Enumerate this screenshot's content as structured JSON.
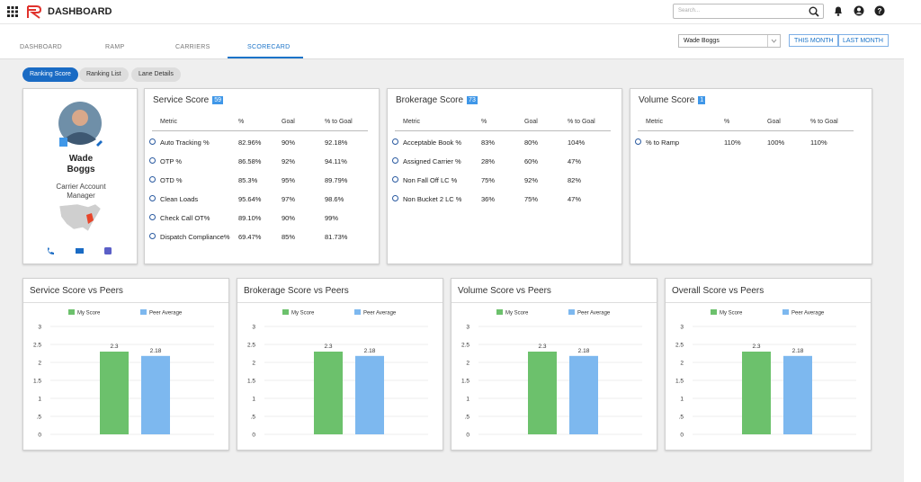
{
  "header": {
    "title": "DASHBOARD",
    "search_placeholder": "Search..."
  },
  "tabs": {
    "items": [
      "DASHBOARD",
      "RAMP",
      "CARRIERS",
      "SCORECARD"
    ],
    "active": 3
  },
  "filters": {
    "user": "Wade Boggs",
    "buttons": [
      "THIS MONTH",
      "LAST MONTH"
    ]
  },
  "subtabs": {
    "items": [
      "Ranking Score",
      "Ranking List",
      "Lane Details"
    ],
    "active": 0
  },
  "profile": {
    "name": "Wade Boggs",
    "role": "Carrier Account Manager"
  },
  "score_cards": [
    {
      "title": "Service Score",
      "badge": "59",
      "columns": [
        "Metric",
        "%",
        "Goal",
        "% to Goal"
      ],
      "rows": [
        [
          "Auto Tracking %",
          "82.96%",
          "90%",
          "92.18%"
        ],
        [
          "OTP %",
          "86.58%",
          "92%",
          "94.11%"
        ],
        [
          "OTD %",
          "85.3%",
          "95%",
          "89.79%"
        ],
        [
          "Clean Loads",
          "95.64%",
          "97%",
          "98.6%"
        ],
        [
          "Check Call OT%",
          "89.10%",
          "90%",
          "99%"
        ],
        [
          "Dispatch Compliance%",
          "69.47%",
          "85%",
          "81.73%"
        ]
      ]
    },
    {
      "title": "Brokerage Score",
      "badge": "73",
      "columns": [
        "Metric",
        "%",
        "Goal",
        "% to Goal"
      ],
      "rows": [
        [
          "Acceptable Book %",
          "83%",
          "80%",
          "104%"
        ],
        [
          "Assigned Carrier %",
          "28%",
          "60%",
          "47%"
        ],
        [
          "Non Fall Off LC %",
          "75%",
          "92%",
          "82%"
        ],
        [
          "Non Bucket 2 LC %",
          "36%",
          "75%",
          "47%"
        ]
      ]
    },
    {
      "title": "Volume Score",
      "badge": "1",
      "columns": [
        "Metric",
        "%",
        "Goal",
        "% to Goal"
      ],
      "rows": [
        [
          "% to Ramp",
          "110%",
          "100%",
          "110%"
        ]
      ]
    }
  ],
  "charts": [
    {
      "type": "bar",
      "title": "Service Score vs Peers",
      "series": [
        {
          "name": "My Score",
          "color": "#6cc16c",
          "values": [
            2.3
          ]
        },
        {
          "name": "Peer Average",
          "color": "#7db8ef",
          "values": [
            2.18
          ]
        }
      ],
      "ylim": [
        0,
        3
      ],
      "yticks": [
        0,
        {
          "value": 0.5,
          "label": ".5"
        },
        1,
        1.5,
        2,
        2.5,
        3
      ]
    },
    {
      "type": "bar",
      "title": "Brokerage Score vs Peers",
      "series": [
        {
          "name": "My Score",
          "color": "#6cc16c",
          "values": [
            2.3
          ]
        },
        {
          "name": "Peer Average",
          "color": "#7db8ef",
          "values": [
            2.18
          ]
        }
      ],
      "ylim": [
        0,
        3
      ],
      "yticks": [
        0,
        {
          "value": 0.5,
          "label": ".5"
        },
        1,
        1.5,
        2,
        2.5,
        3
      ]
    },
    {
      "type": "bar",
      "title": "Volume Score vs Peers",
      "series": [
        {
          "name": "My Score",
          "color": "#6cc16c",
          "values": [
            2.3
          ]
        },
        {
          "name": "Peer Average",
          "color": "#7db8ef",
          "values": [
            2.18
          ]
        }
      ],
      "ylim": [
        0,
        3
      ],
      "yticks": [
        0,
        {
          "value": 0.5,
          "label": ".5"
        },
        1,
        1.5,
        2,
        2.5,
        3
      ]
    },
    {
      "type": "bar",
      "title": "Overall Score vs Peers",
      "series": [
        {
          "name": "My Score",
          "color": "#6cc16c",
          "values": [
            2.3
          ]
        },
        {
          "name": "Peer Average",
          "color": "#7db8ef",
          "values": [
            2.18
          ]
        }
      ],
      "ylim": [
        0,
        3
      ],
      "yticks": [
        0,
        {
          "value": 0.5,
          "label": ".5"
        },
        1,
        1.5,
        2,
        2.5,
        3
      ]
    }
  ]
}
